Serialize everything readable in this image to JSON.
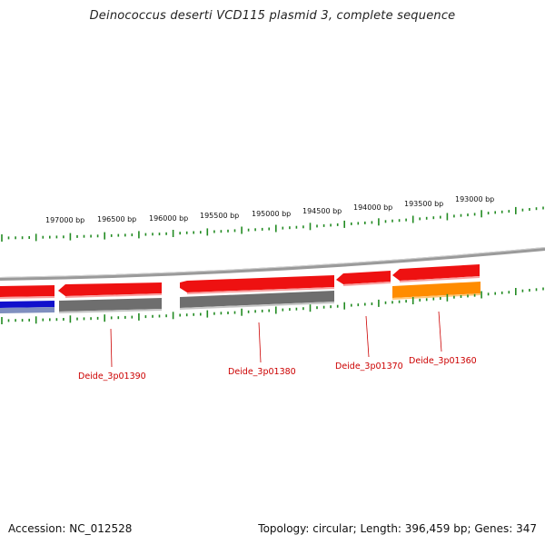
{
  "title": "Deinococcus deserti VCD115 plasmid 3, complete sequence",
  "footer": {
    "accession": "Accession: NC_012528",
    "topology": "Topology: circular; Length: 396,459 bp; Genes: 347"
  },
  "colors": {
    "ruler": "#228b22",
    "backbone": "#808080",
    "gene_red": "#ee1111",
    "gene_gray": "#6e6e6e",
    "gene_orange": "#ff8c00",
    "gene_blue": "#1010cc",
    "label": "#cc0000"
  },
  "ruler": {
    "labels": [
      "197000 bp",
      "196500 bp",
      "196000 bp",
      "195500 bp",
      "195000 bp",
      "194500 bp",
      "194000 bp",
      "193500 bp",
      "193000 bp"
    ]
  },
  "genes": [
    {
      "name": "Deide_3p01390",
      "strand": "reverse",
      "color": "red"
    },
    {
      "name": "Deide_3p01380",
      "strand": "forward",
      "color": "red"
    },
    {
      "name": "Deide_3p01370",
      "strand": "reverse",
      "color": "red"
    },
    {
      "name": "Deide_3p01360",
      "strand": "reverse",
      "color": "red"
    }
  ],
  "gene_labels": [
    "Deide_3p01390",
    "Deide_3p01380",
    "Deide_3p01370",
    "Deide_3p01360"
  ]
}
